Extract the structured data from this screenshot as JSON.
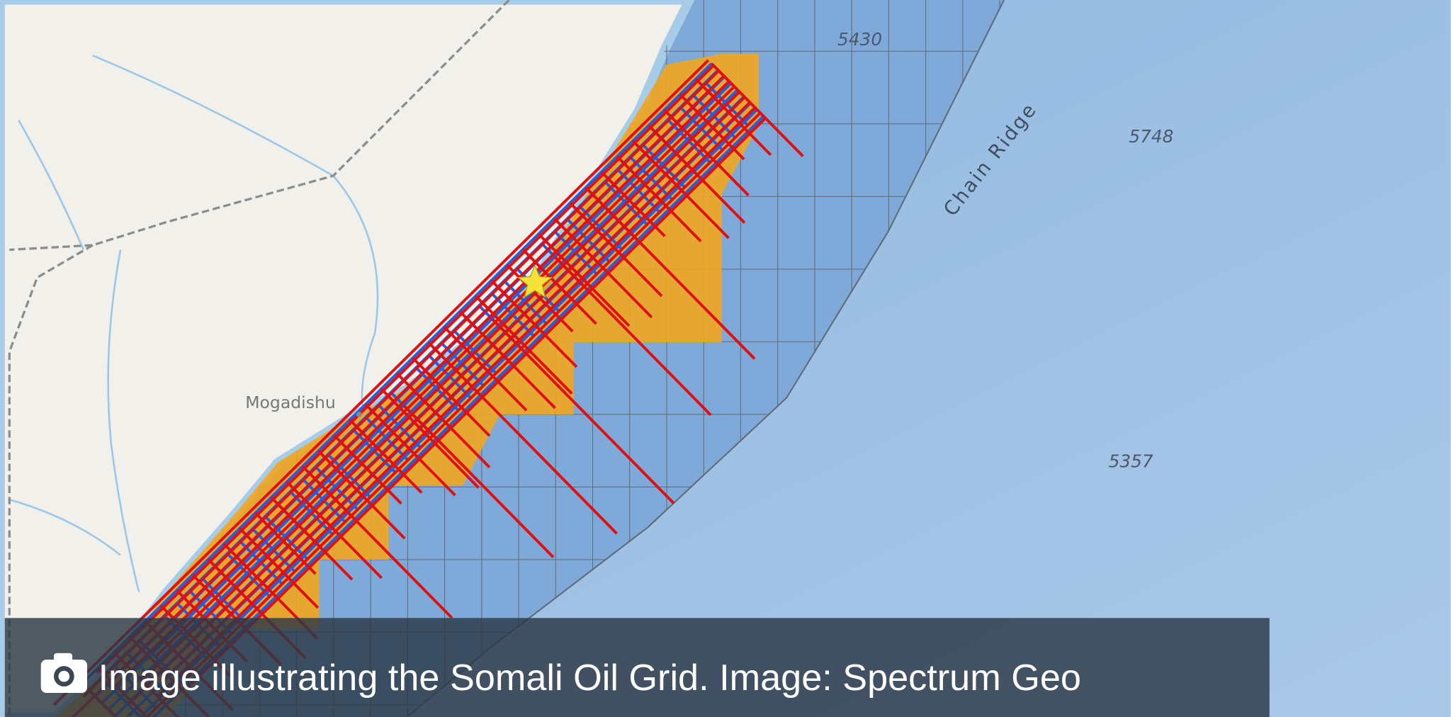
{
  "map": {
    "labels": [
      "5430",
      "Chain Ridge",
      "5748",
      "Mogadishu",
      "5357"
    ],
    "caption": "Image illustrating the Somali Oil Grid. Image: Spectrum Geo"
  }
}
